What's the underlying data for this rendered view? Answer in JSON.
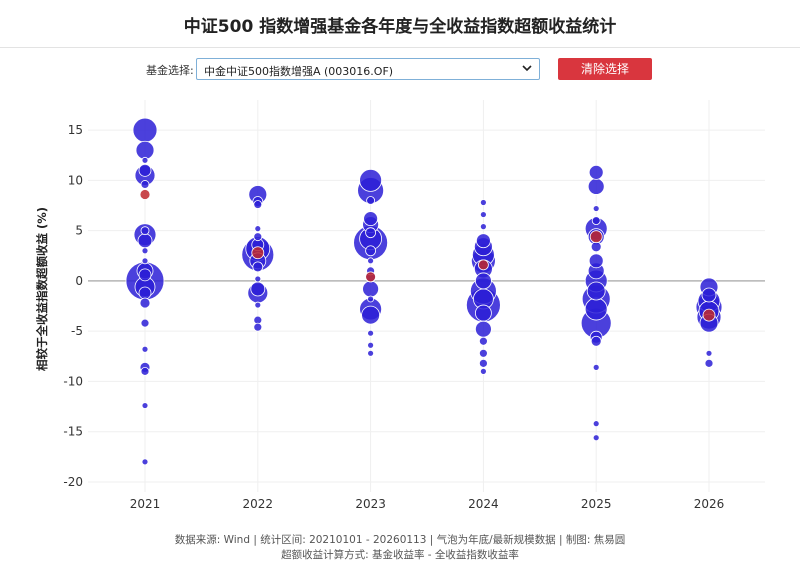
{
  "title": "中证500 指数增强基金各年度与全收益指数超额收益统计",
  "controls": {
    "label": "基金选择:",
    "selected_fund": "中金中证500指数增强A (003016.OF)",
    "clear_label": "清除选择"
  },
  "footer": {
    "line1": "数据来源: Wind | 统计区间: 20210101 - 20260113 | 气泡为年底/最新规模数据 | 制图: 焦易圆",
    "line2": "超额收益计算方式: 基金收益率 - 全收益指数收益率"
  },
  "colors": {
    "bubble": "#2b1fd6",
    "highlight": "#c0282d",
    "zero_line": "#b5b5b5",
    "grid": "#efefef"
  },
  "chart_data": {
    "type": "scatter",
    "title": "",
    "xlabel": "",
    "ylabel": "相较于全收益指数超额收益 (%)",
    "categories": [
      "2021",
      "2022",
      "2023",
      "2024",
      "2025",
      "2026"
    ],
    "ylim": [
      -21,
      18
    ],
    "yticks": [
      15,
      10,
      5,
      0,
      -5,
      -10,
      -15,
      -20
    ],
    "grid": true,
    "series": [
      {
        "year": "2021",
        "points": [
          {
            "y": 15.0,
            "s": 12
          },
          {
            "y": 13.0,
            "s": 9
          },
          {
            "y": 12.0,
            "s": 3
          },
          {
            "y": 11.0,
            "s": 6
          },
          {
            "y": 10.5,
            "s": 10
          },
          {
            "y": 9.6,
            "s": 4
          },
          {
            "y": 5.0,
            "s": 4
          },
          {
            "y": 4.6,
            "s": 11
          },
          {
            "y": 4.0,
            "s": 7
          },
          {
            "y": 3.0,
            "s": 3
          },
          {
            "y": 2.0,
            "s": 3
          },
          {
            "y": 1.0,
            "s": 8
          },
          {
            "y": 0.6,
            "s": 6
          },
          {
            "y": 0.0,
            "s": 19
          },
          {
            "y": -0.6,
            "s": 10
          },
          {
            "y": -1.2,
            "s": 6
          },
          {
            "y": -2.2,
            "s": 5
          },
          {
            "y": -4.2,
            "s": 4
          },
          {
            "y": -6.8,
            "s": 3
          },
          {
            "y": -8.6,
            "s": 5
          },
          {
            "y": -9.0,
            "s": 4
          },
          {
            "y": -12.4,
            "s": 3
          },
          {
            "y": -18.0,
            "s": 3
          }
        ],
        "highlight": {
          "y": 8.6,
          "s": 5
        }
      },
      {
        "year": "2022",
        "points": [
          {
            "y": 8.6,
            "s": 9
          },
          {
            "y": 7.9,
            "s": 5
          },
          {
            "y": 7.6,
            "s": 4
          },
          {
            "y": 5.2,
            "s": 3
          },
          {
            "y": 4.4,
            "s": 4
          },
          {
            "y": 3.6,
            "s": 6
          },
          {
            "y": 3.2,
            "s": 12
          },
          {
            "y": 2.6,
            "s": 16
          },
          {
            "y": 2.0,
            "s": 8
          },
          {
            "y": 1.4,
            "s": 5
          },
          {
            "y": 0.2,
            "s": 3
          },
          {
            "y": -0.8,
            "s": 7
          },
          {
            "y": -1.2,
            "s": 10
          },
          {
            "y": -2.4,
            "s": 3
          },
          {
            "y": -3.9,
            "s": 4
          },
          {
            "y": -4.6,
            "s": 4
          }
        ],
        "highlight": {
          "y": 2.8,
          "s": 6
        }
      },
      {
        "year": "2023",
        "points": [
          {
            "y": 10.0,
            "s": 11
          },
          {
            "y": 9.0,
            "s": 13
          },
          {
            "y": 8.0,
            "s": 4
          },
          {
            "y": 6.2,
            "s": 7
          },
          {
            "y": 5.6,
            "s": 8
          },
          {
            "y": 4.8,
            "s": 5
          },
          {
            "y": 4.2,
            "s": 11
          },
          {
            "y": 3.8,
            "s": 17
          },
          {
            "y": 3.0,
            "s": 5
          },
          {
            "y": 2.0,
            "s": 3
          },
          {
            "y": 1.0,
            "s": 4
          },
          {
            "y": 0.4,
            "s": 5
          },
          {
            "y": -0.8,
            "s": 8
          },
          {
            "y": -1.8,
            "s": 3
          },
          {
            "y": -2.8,
            "s": 11
          },
          {
            "y": -3.4,
            "s": 9
          },
          {
            "y": -5.2,
            "s": 3
          },
          {
            "y": -6.4,
            "s": 3
          },
          {
            "y": -7.2,
            "s": 3
          }
        ],
        "highlight": {
          "y": 0.4,
          "s": 5
        }
      },
      {
        "year": "2024",
        "points": [
          {
            "y": 7.8,
            "s": 3
          },
          {
            "y": 6.6,
            "s": 3
          },
          {
            "y": 5.4,
            "s": 3
          },
          {
            "y": 4.0,
            "s": 7
          },
          {
            "y": 3.4,
            "s": 9
          },
          {
            "y": 2.6,
            "s": 11
          },
          {
            "y": 2.0,
            "s": 12
          },
          {
            "y": 1.2,
            "s": 9
          },
          {
            "y": 0.0,
            "s": 8
          },
          {
            "y": -1.0,
            "s": 13
          },
          {
            "y": -1.8,
            "s": 10
          },
          {
            "y": -2.4,
            "s": 17
          },
          {
            "y": -3.2,
            "s": 8
          },
          {
            "y": -4.8,
            "s": 8
          },
          {
            "y": -6.0,
            "s": 4
          },
          {
            "y": -7.2,
            "s": 4
          },
          {
            "y": -8.2,
            "s": 4
          },
          {
            "y": -9.0,
            "s": 3
          }
        ],
        "highlight": {
          "y": 1.6,
          "s": 5
        }
      },
      {
        "year": "2025",
        "points": [
          {
            "y": 10.8,
            "s": 7
          },
          {
            "y": 9.4,
            "s": 8
          },
          {
            "y": 7.2,
            "s": 3
          },
          {
            "y": 6.0,
            "s": 4
          },
          {
            "y": 5.2,
            "s": 11
          },
          {
            "y": 4.4,
            "s": 8
          },
          {
            "y": 3.4,
            "s": 5
          },
          {
            "y": 2.0,
            "s": 7
          },
          {
            "y": 1.0,
            "s": 8
          },
          {
            "y": 0.0,
            "s": 11
          },
          {
            "y": -1.0,
            "s": 9
          },
          {
            "y": -1.8,
            "s": 14
          },
          {
            "y": -2.8,
            "s": 11
          },
          {
            "y": -4.2,
            "s": 15
          },
          {
            "y": -5.6,
            "s": 6
          },
          {
            "y": -6.0,
            "s": 5
          },
          {
            "y": -8.6,
            "s": 3
          },
          {
            "y": -14.2,
            "s": 3
          },
          {
            "y": -15.6,
            "s": 3
          }
        ],
        "highlight": {
          "y": 4.4,
          "s": 6
        }
      },
      {
        "year": "2026",
        "points": [
          {
            "y": -0.6,
            "s": 9
          },
          {
            "y": -1.4,
            "s": 7
          },
          {
            "y": -2.0,
            "s": 11
          },
          {
            "y": -2.6,
            "s": 13
          },
          {
            "y": -3.0,
            "s": 10
          },
          {
            "y": -3.6,
            "s": 12
          },
          {
            "y": -4.2,
            "s": 9
          },
          {
            "y": -7.2,
            "s": 3
          },
          {
            "y": -8.2,
            "s": 4
          }
        ],
        "highlight": {
          "y": -3.4,
          "s": 6
        }
      }
    ]
  }
}
